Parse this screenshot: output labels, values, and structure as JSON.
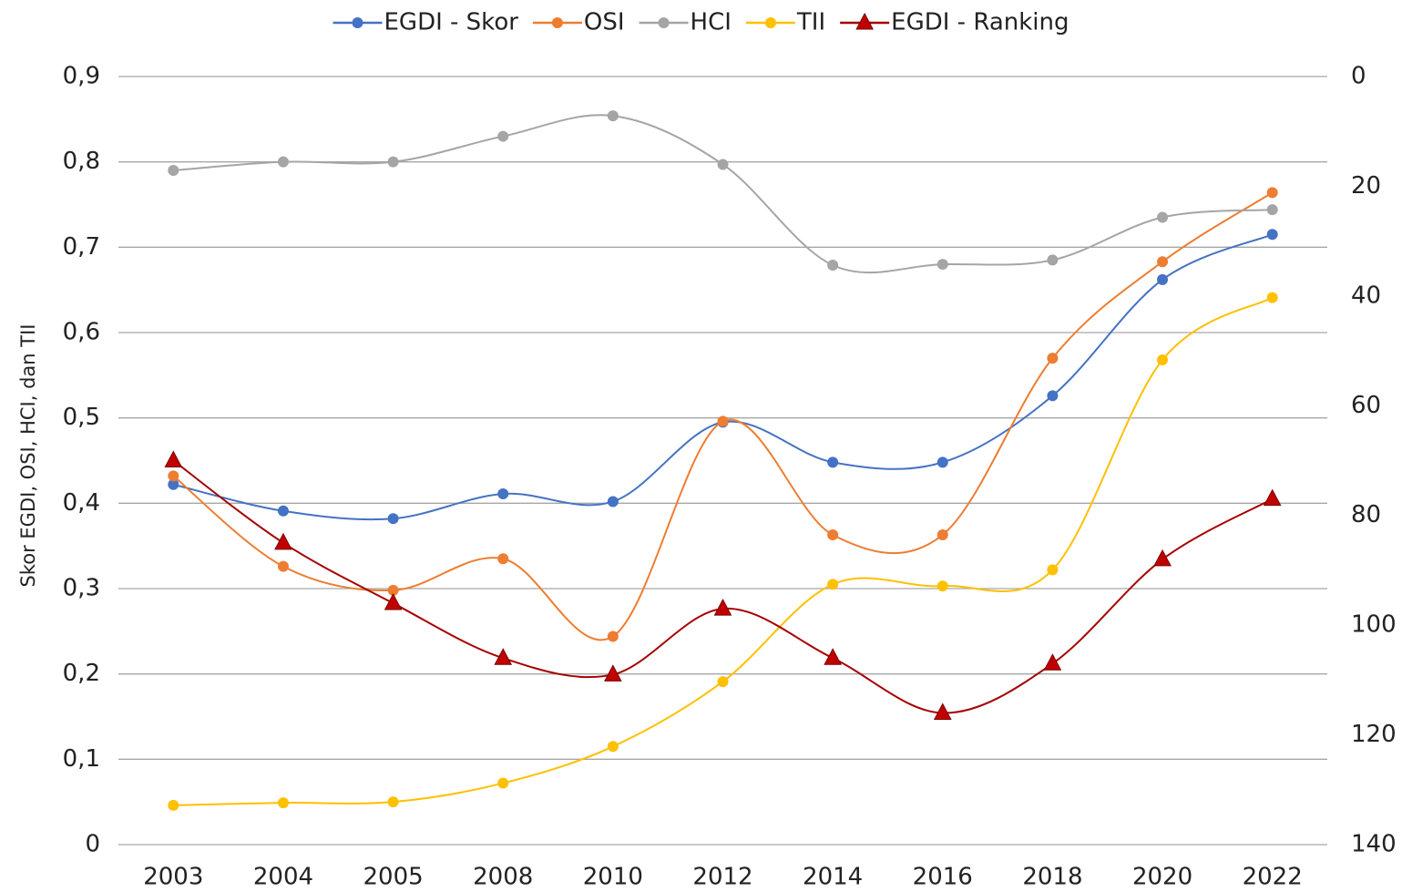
{
  "chart_data": {
    "type": "line",
    "y_label": "Skor EGDI, OSI, HCI, dan TII",
    "categories": [
      "2003",
      "2004",
      "2005",
      "2008",
      "2010",
      "2012",
      "2014",
      "2016",
      "2018",
      "2020",
      "2022"
    ],
    "series": [
      {
        "name": "EGDI - Skor",
        "color": "#4472c4",
        "marker": "circle",
        "values": [
          0.422,
          0.391,
          0.382,
          0.411,
          0.402,
          0.495,
          0.448,
          0.448,
          0.526,
          0.662,
          0.715
        ]
      },
      {
        "name": "OSI",
        "color": "#ed7d31",
        "marker": "circle",
        "values": [
          0.432,
          0.326,
          0.298,
          0.335,
          0.244,
          0.496,
          0.363,
          0.363,
          0.57,
          0.683,
          0.764
        ]
      },
      {
        "name": "HCI",
        "color": "#a5a5a5",
        "marker": "circle",
        "values": [
          0.79,
          0.8,
          0.8,
          0.83,
          0.854,
          0.797,
          0.679,
          0.68,
          0.685,
          0.735,
          0.744
        ]
      },
      {
        "name": "TII",
        "color": "#ffc000",
        "marker": "circle",
        "values": [
          0.046,
          0.049,
          0.05,
          0.072,
          0.115,
          0.191,
          0.305,
          0.303,
          0.322,
          0.568,
          0.641
        ]
      },
      {
        "name": "EGDI - Ranking",
        "color": "#a50000",
        "marker": "triangle",
        "axis": "y2",
        "values": [
          70,
          85,
          96,
          106,
          109,
          97,
          106,
          116,
          107,
          88,
          77
        ]
      }
    ],
    "ylim": [
      0,
      0.9
    ],
    "yticks": [
      {
        "value": 0,
        "label": "0"
      },
      {
        "value": 0.1,
        "label": "0,1"
      },
      {
        "value": 0.2,
        "label": "0,2"
      },
      {
        "value": 0.3,
        "label": "0,3"
      },
      {
        "value": 0.4,
        "label": "0,4"
      },
      {
        "value": 0.5,
        "label": "0,5"
      },
      {
        "value": 0.6,
        "label": "0,6"
      },
      {
        "value": 0.7,
        "label": "0,7"
      },
      {
        "value": 0.8,
        "label": "0,8"
      },
      {
        "value": 0.9,
        "label": "0,9"
      }
    ],
    "y2lim": [
      0,
      140
    ],
    "y2_reversed": true,
    "y2ticks": [
      0,
      20,
      40,
      60,
      80,
      100,
      120,
      140
    ],
    "grid": true,
    "smooth": true,
    "legend": "top"
  }
}
